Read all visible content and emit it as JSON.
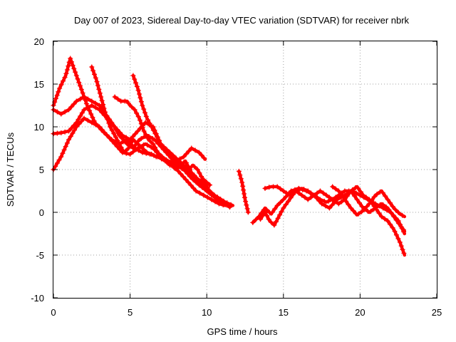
{
  "chart_data": {
    "type": "scatter",
    "title": "Day 007 of 2023, Sidereal Day-to-day VTEC variation (SDTVAR) for receiver nbrk",
    "xlabel": "GPS time / hours",
    "ylabel": "SDTVAR / TECUs",
    "xlim": [
      0,
      25
    ],
    "ylim": [
      -10,
      20
    ],
    "xticks": [
      "0",
      "5",
      "10",
      "15",
      "20",
      "25"
    ],
    "yticks": [
      "-10",
      "-5",
      "0",
      "5",
      "10",
      "15",
      "20"
    ],
    "grid": true,
    "marker": "plus",
    "color": "#ff0000",
    "series": [
      {
        "name": "track-a",
        "x": [
          0.0,
          0.4,
          0.8,
          1.1,
          1.3,
          1.7,
          2.2,
          2.7,
          3.2,
          3.8,
          4.3,
          4.8,
          5.3,
          5.8,
          6.3,
          6.8,
          7.3,
          7.8,
          8.3,
          8.8,
          9.3,
          9.8,
          10.3,
          10.8,
          11.2
        ],
        "y": [
          12.5,
          14.5,
          16.0,
          18.0,
          17.0,
          15.0,
          12.5,
          10.5,
          9.5,
          8.5,
          8.0,
          8.5,
          7.5,
          7.0,
          6.8,
          6.5,
          6.0,
          5.5,
          4.5,
          3.5,
          2.5,
          2.0,
          1.5,
          1.0,
          0.8
        ]
      },
      {
        "name": "track-b",
        "x": [
          0.0,
          0.5,
          1.0,
          1.5,
          2.0,
          2.5,
          3.0,
          3.4,
          3.8,
          4.3,
          4.8,
          5.2,
          5.6,
          6.1,
          6.6,
          7.1,
          7.6,
          8.1,
          8.6,
          9.1,
          9.6,
          10.0,
          10.5,
          11.0
        ],
        "y": [
          12.0,
          11.5,
          12.0,
          13.0,
          13.5,
          13.0,
          12.5,
          11.5,
          10.5,
          9.0,
          8.0,
          7.5,
          8.5,
          9.0,
          8.5,
          7.5,
          6.5,
          5.5,
          5.0,
          4.5,
          3.5,
          2.5,
          1.8,
          1.0
        ]
      },
      {
        "name": "track-c",
        "x": [
          0.0,
          0.5,
          1.0,
          1.5,
          2.0,
          2.5,
          3.0,
          3.5,
          4.0,
          4.5,
          5.0,
          5.5,
          6.0,
          6.5,
          7.0,
          7.5,
          8.0,
          8.5,
          9.0,
          9.5,
          10.0,
          10.5,
          11.2,
          11.7
        ],
        "y": [
          9.2,
          9.3,
          9.5,
          10.5,
          12.0,
          12.5,
          12.0,
          11.0,
          10.0,
          9.0,
          8.5,
          9.5,
          10.5,
          10.0,
          8.0,
          7.0,
          6.0,
          5.5,
          4.5,
          3.5,
          2.8,
          2.0,
          1.2,
          0.8
        ]
      },
      {
        "name": "track-d",
        "x": [
          0.0,
          0.5,
          1.0,
          1.5,
          2.0,
          2.5,
          3.0,
          3.5,
          4.0,
          4.5,
          5.0,
          5.5,
          6.0,
          6.5,
          7.0,
          7.5,
          8.0,
          8.5,
          9.0,
          9.5,
          10.0,
          10.5,
          11.0,
          11.5
        ],
        "y": [
          5.0,
          6.5,
          8.5,
          10.0,
          11.0,
          10.5,
          10.0,
          9.0,
          8.0,
          7.0,
          6.8,
          7.5,
          8.0,
          7.5,
          6.5,
          6.0,
          5.5,
          5.0,
          4.0,
          3.2,
          2.5,
          1.8,
          1.2,
          0.6
        ]
      },
      {
        "name": "track-e",
        "x": [
          2.5,
          2.8,
          3.1,
          3.4,
          3.7,
          4.0,
          4.3,
          4.6,
          4.9,
          5.2,
          5.5,
          5.8,
          6.1,
          6.4,
          6.7,
          7.0,
          7.3,
          7.6,
          8.0,
          8.5,
          9.0,
          9.5,
          9.9
        ],
        "y": [
          17.0,
          15.5,
          13.5,
          11.5,
          10.0,
          9.0,
          8.0,
          7.0,
          7.5,
          8.5,
          8.0,
          7.5,
          7.0,
          6.8,
          6.5,
          6.5,
          6.0,
          5.5,
          6.0,
          6.5,
          7.5,
          7.0,
          6.2
        ]
      },
      {
        "name": "track-f",
        "x": [
          4.0,
          4.4,
          4.8,
          5.0,
          5.3,
          5.6,
          5.9,
          6.2,
          6.5,
          6.8,
          7.1,
          7.4,
          7.7,
          8.0,
          8.3,
          8.6,
          8.9,
          9.2,
          9.5,
          9.8,
          10.1
        ],
        "y": [
          13.5,
          13.0,
          13.0,
          12.5,
          12.0,
          11.0,
          9.5,
          8.5,
          8.0,
          7.0,
          6.5,
          6.0,
          5.5,
          5.0,
          5.5,
          6.0,
          5.0,
          4.0,
          3.8,
          3.5,
          2.8
        ]
      },
      {
        "name": "track-g",
        "x": [
          5.2,
          5.5,
          5.8,
          6.1,
          6.4,
          6.7,
          7.0,
          7.3,
          7.6,
          7.9,
          8.2,
          8.5,
          8.8,
          9.1,
          9.4,
          9.7,
          10.0,
          10.2
        ],
        "y": [
          16.0,
          14.5,
          12.5,
          11.0,
          10.0,
          9.0,
          8.0,
          7.5,
          7.0,
          6.5,
          6.0,
          5.5,
          5.0,
          5.5,
          5.0,
          4.0,
          3.5,
          3.2
        ]
      },
      {
        "name": "track-h",
        "x": [
          12.1,
          12.3,
          12.5,
          12.7
        ],
        "y": [
          4.8,
          3.5,
          1.5,
          0.0
        ]
      },
      {
        "name": "track-i",
        "x": [
          13.0,
          13.4,
          13.8,
          14.2,
          14.6,
          15.0,
          15.5,
          16.0,
          16.5,
          17.0,
          17.5,
          18.0,
          18.5,
          19.0,
          19.5,
          20.0,
          20.5,
          21.0,
          21.5,
          22.0,
          22.5,
          22.9
        ],
        "y": [
          -1.2,
          -0.5,
          0.5,
          -0.2,
          0.8,
          1.5,
          2.5,
          2.8,
          2.5,
          2.0,
          1.0,
          0.5,
          1.5,
          2.0,
          2.5,
          2.0,
          1.5,
          1.0,
          0.5,
          0.0,
          -1.0,
          -2.5
        ]
      },
      {
        "name": "track-j",
        "x": [
          13.5,
          13.8,
          14.1,
          14.4,
          14.7,
          15.0,
          15.4,
          15.8,
          16.2,
          16.6,
          17.0,
          17.4,
          17.8,
          18.2,
          18.6,
          19.0,
          19.4,
          19.8,
          20.2,
          20.6,
          21.0,
          21.4,
          21.8,
          22.2,
          22.6,
          22.9
        ],
        "y": [
          -0.8,
          0.0,
          -1.0,
          -1.5,
          -0.5,
          0.5,
          1.5,
          2.5,
          2.0,
          1.5,
          2.0,
          2.5,
          2.0,
          1.5,
          1.0,
          1.5,
          2.5,
          3.0,
          2.0,
          1.5,
          0.5,
          -0.5,
          -1.0,
          -2.0,
          -3.5,
          -5.0
        ]
      },
      {
        "name": "track-k",
        "x": [
          13.8,
          14.2,
          14.6,
          15.0,
          15.4,
          15.8,
          16.2,
          16.6,
          17.0,
          17.4,
          17.8,
          18.2,
          18.6,
          19.0,
          19.4,
          19.8,
          20.2,
          20.6,
          21.0,
          21.4,
          21.8,
          22.2,
          22.6,
          22.9
        ],
        "y": [
          2.8,
          3.0,
          3.0,
          2.5,
          2.0,
          2.5,
          2.8,
          2.5,
          2.0,
          1.5,
          1.2,
          1.5,
          2.0,
          2.5,
          2.5,
          1.5,
          0.5,
          0.0,
          0.5,
          1.0,
          0.5,
          -0.5,
          -1.5,
          -2.2
        ]
      },
      {
        "name": "track-l",
        "x": [
          18.2,
          18.6,
          19.0,
          19.4,
          19.8,
          20.2,
          20.6,
          21.0,
          21.4,
          21.8,
          22.2,
          22.6,
          22.9
        ],
        "y": [
          3.0,
          2.5,
          1.5,
          0.5,
          -0.3,
          0.2,
          1.0,
          2.0,
          2.5,
          1.5,
          0.5,
          -0.2,
          -0.5
        ]
      }
    ]
  }
}
